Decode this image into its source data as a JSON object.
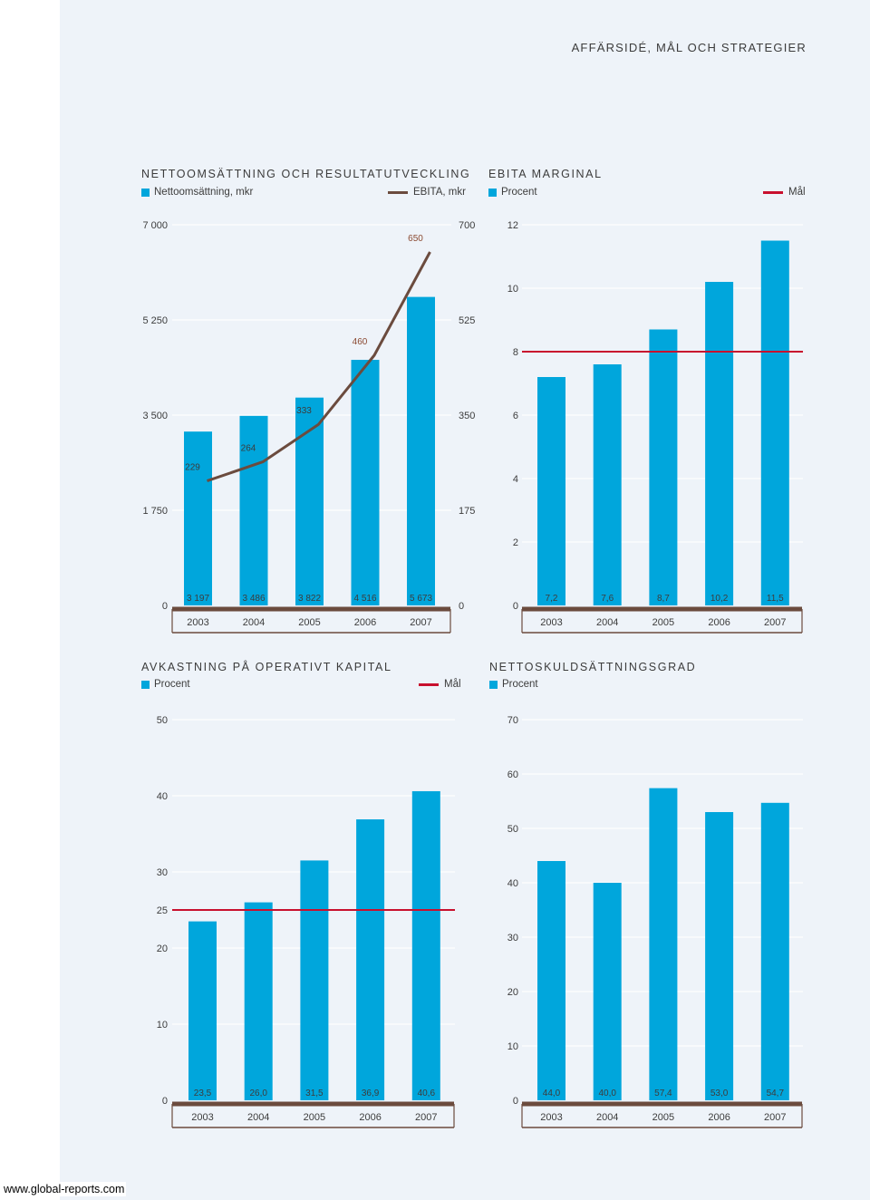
{
  "header": {
    "section": "AFFÄRSIDÉ, MÅL OCH STRATEGIER"
  },
  "colors": {
    "bar": "#00a6dc",
    "line": "#6b4b3e",
    "goal": "#c8102e",
    "baseline": "#6b4b3e",
    "grid": "#ffffff",
    "text": "#3c3c3c"
  },
  "footer": {
    "link": "www.global-reports.com"
  },
  "charts": {
    "sales": {
      "title": "NETTOOMSÄTTNING OCH RESULTATUTVECKLING",
      "legend_bar": "Nettoomsättning, mkr",
      "legend_line": "EBITA, mkr"
    },
    "ebita": {
      "title": "EBITA MARGINAL",
      "legend_bar": "Procent",
      "legend_goal": "Mål"
    },
    "roc": {
      "title": "AVKASTNING PÅ OPERATIVT KAPITAL",
      "legend_bar": "Procent",
      "legend_goal": "Mål"
    },
    "debt": {
      "title": "NETTOSKULDSÄTTNINGSGRAD",
      "legend_bar": "Procent"
    }
  },
  "chart_data": [
    {
      "id": "sales",
      "type": "bar",
      "title": "NETTOOMSÄTTNING OCH RESULTATUTVECKLING",
      "categories": [
        "2003",
        "2004",
        "2005",
        "2006",
        "2007"
      ],
      "series": [
        {
          "name": "Nettoomsättning, mkr",
          "values": [
            3197,
            3486,
            3822,
            4516,
            5673
          ],
          "labels": [
            "3 197",
            "3 486",
            "3 822",
            "4 516",
            "5 673"
          ]
        },
        {
          "name": "EBITA, mkr",
          "type": "line",
          "axis": "right",
          "values": [
            229,
            264,
            333,
            460,
            650
          ],
          "labels": [
            "229",
            "264",
            "333",
            "460",
            "650"
          ]
        }
      ],
      "ylim": [
        0,
        7000
      ],
      "yticks": [
        0,
        1750,
        3500,
        5250,
        7000
      ],
      "ytick_labels": [
        "0",
        "1 750",
        "3 500",
        "5 250",
        "7 000"
      ],
      "y2lim": [
        0,
        700
      ],
      "y2ticks": [
        0,
        175,
        350,
        525,
        700
      ],
      "y2tick_labels": [
        "0",
        "175",
        "350",
        "525",
        "700"
      ]
    },
    {
      "id": "ebita",
      "type": "bar",
      "title": "EBITA MARGINAL",
      "categories": [
        "2003",
        "2004",
        "2005",
        "2006",
        "2007"
      ],
      "series": [
        {
          "name": "Procent",
          "values": [
            7.2,
            7.6,
            8.7,
            10.2,
            11.5
          ],
          "labels": [
            "7,2",
            "7,6",
            "8,7",
            "10,2",
            "11,5"
          ]
        }
      ],
      "goal": {
        "name": "Mål",
        "value": 8
      },
      "ylim": [
        0,
        12
      ],
      "yticks": [
        0,
        2,
        4,
        6,
        8,
        10,
        12
      ],
      "ytick_labels": [
        "0",
        "2",
        "4",
        "6",
        "8",
        "10",
        "12"
      ]
    },
    {
      "id": "roc",
      "type": "bar",
      "title": "AVKASTNING PÅ OPERATIVT KAPITAL",
      "categories": [
        "2003",
        "2004",
        "2005",
        "2006",
        "2007"
      ],
      "series": [
        {
          "name": "Procent",
          "values": [
            23.5,
            26.0,
            31.5,
            36.9,
            40.6
          ],
          "labels": [
            "23,5",
            "26,0",
            "31,5",
            "36,9",
            "40,6"
          ]
        }
      ],
      "goal": {
        "name": "Mål",
        "value": 25
      },
      "ylim": [
        0,
        50
      ],
      "yticks": [
        0,
        10,
        20,
        30,
        40,
        50
      ],
      "ytick_labels": [
        "0",
        "10",
        "20",
        "30",
        "40",
        "50"
      ],
      "extra_ticks": [
        {
          "value": 25,
          "label": "25"
        }
      ]
    },
    {
      "id": "debt",
      "type": "bar",
      "title": "NETTOSKULDSÄTTNINGSGRAD",
      "categories": [
        "2003",
        "2004",
        "2005",
        "2006",
        "2007"
      ],
      "series": [
        {
          "name": "Procent",
          "values": [
            44.0,
            40.0,
            57.4,
            53.0,
            54.7
          ],
          "labels": [
            "44,0",
            "40,0",
            "57,4",
            "53,0",
            "54,7"
          ]
        }
      ],
      "ylim": [
        0,
        70
      ],
      "yticks": [
        0,
        10,
        20,
        30,
        40,
        50,
        60,
        70
      ],
      "ytick_labels": [
        "0",
        "10",
        "20",
        "30",
        "40",
        "50",
        "60",
        "70"
      ]
    }
  ]
}
